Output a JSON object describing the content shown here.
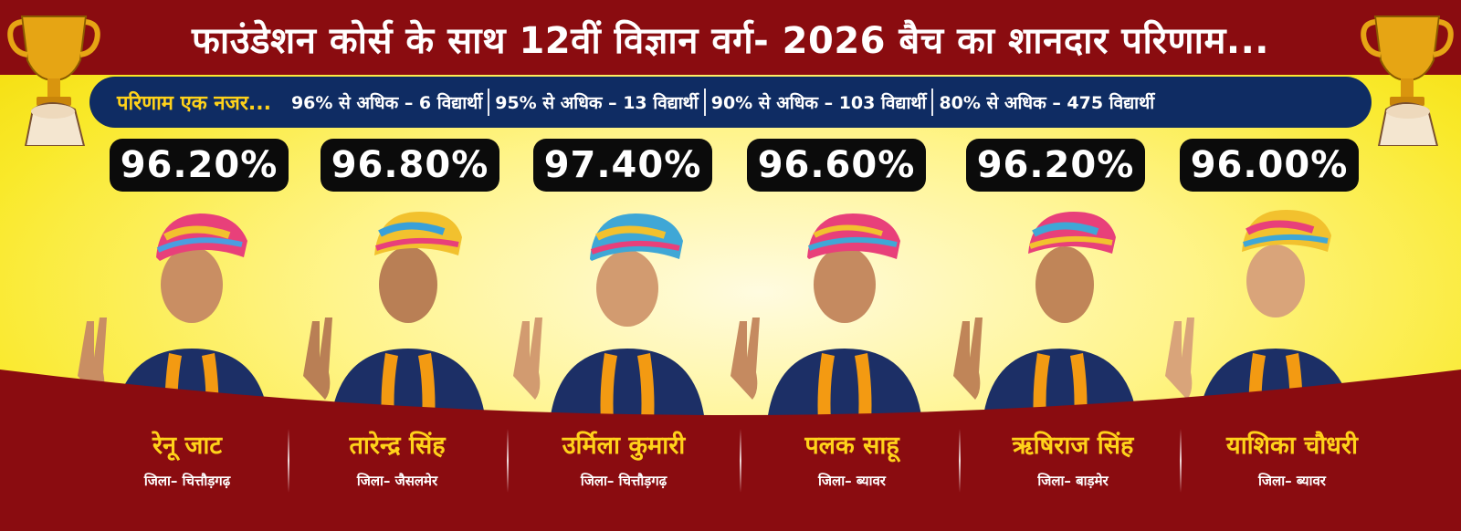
{
  "header": {
    "title": "फाउंडेशन कोर्स के साथ 12वीं विज्ञान वर्ग- 2026 बैच का शानदार परिणाम..."
  },
  "stats": {
    "title": "परिणाम एक नजर...",
    "items": [
      {
        "label": "96% से अधिक – 6 विद्यार्थी"
      },
      {
        "label": "95% से अधिक – 13 विद्यार्थी"
      },
      {
        "label": "90% से अधिक – 103 विद्यार्थी"
      },
      {
        "label": "80% से अधिक – 475 विद्यार्थी"
      }
    ]
  },
  "students": [
    {
      "percent": "96.20%",
      "name": "रेनू जाट",
      "district": "जिला– चित्तौड़गढ़"
    },
    {
      "percent": "96.80%",
      "name": "तारेन्द्र सिंह",
      "district": "जिला– जैसलमेर"
    },
    {
      "percent": "97.40%",
      "name": "उर्मिला कुमारी",
      "district": "जिला– चित्तौड़गढ़"
    },
    {
      "percent": "96.60%",
      "name": "पलक साहू",
      "district": "जिला– ब्यावर"
    },
    {
      "percent": "96.20%",
      "name": "ऋषिराज सिंह",
      "district": "जिला– बाड़मेर"
    },
    {
      "percent": "96.00%",
      "name": "याशिका चौधरी",
      "district": "जिला– ब्यावर"
    }
  ],
  "colors": {
    "maroon": "#8a0c10",
    "navy": "#0f2c63",
    "yellow": "#f9e92a",
    "gold_text": "#ffd21a",
    "shirt": "#1c2f66",
    "marigold": "#f39a12"
  },
  "icons": [
    "trophy-icon",
    "victory-hand-icon",
    "turban-icon",
    "marigold-garland-icon"
  ]
}
